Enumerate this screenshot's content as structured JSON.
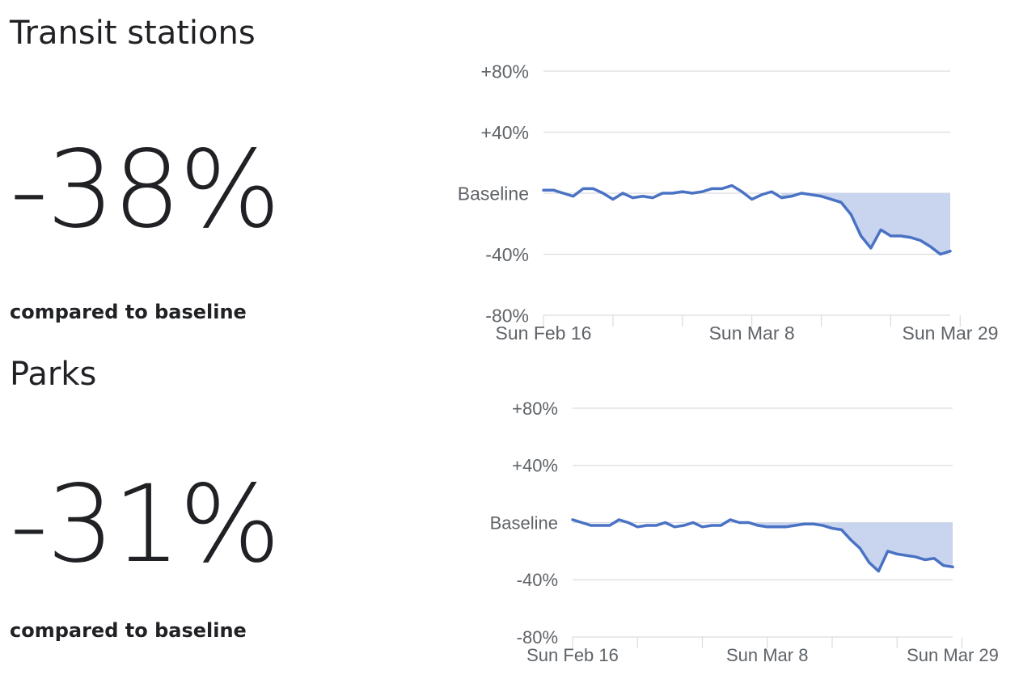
{
  "panels": [
    {
      "title": "Transit stations",
      "value": "-38%",
      "caption": "compared to baseline"
    },
    {
      "title": "Parks",
      "value": "-31%",
      "caption": "compared to baseline"
    }
  ],
  "colors": {
    "line": "#4a72c4",
    "fill": "#c9d4ee",
    "grid": "#dadce0",
    "text": "#202124",
    "tick_text": "#5f6368"
  },
  "chart_data": [
    {
      "type": "area",
      "x_start": "2020-02-16",
      "x_end": "2020-03-29",
      "xticks": [
        "Sun Feb 16",
        "Sun Mar 8",
        "Sun Mar 29"
      ],
      "yticks": [
        {
          "value": 80,
          "label": "+80%"
        },
        {
          "value": 40,
          "label": "+40%"
        },
        {
          "value": 0,
          "label": "Baseline"
        },
        {
          "value": -40,
          "label": "-40%"
        },
        {
          "value": -80,
          "label": "-80%"
        }
      ],
      "ylim": [
        -80,
        80
      ],
      "grid": true,
      "series": [
        {
          "values": [
            2,
            2,
            0,
            -2,
            3,
            3,
            0,
            -4,
            0,
            -3,
            -2,
            -3,
            0,
            0,
            1,
            0,
            1,
            3,
            3,
            5,
            1,
            -4,
            -1,
            1,
            -3,
            -2,
            0,
            -1,
            -2,
            -4,
            -6,
            -14,
            -28,
            -36,
            -24,
            -28,
            -28,
            -29,
            -31,
            -35,
            -40,
            -38
          ]
        }
      ]
    },
    {
      "type": "area",
      "x_start": "2020-02-16",
      "x_end": "2020-03-29",
      "xticks": [
        "Sun Feb 16",
        "Sun Mar 8",
        "Sun Mar 29"
      ],
      "yticks": [
        {
          "value": 80,
          "label": "+80%"
        },
        {
          "value": 40,
          "label": "+40%"
        },
        {
          "value": 0,
          "label": "Baseline"
        },
        {
          "value": -40,
          "label": "-40%"
        },
        {
          "value": -80,
          "label": "-80%"
        }
      ],
      "ylim": [
        -80,
        80
      ],
      "grid": true,
      "series": [
        {
          "values": [
            2,
            0,
            -2,
            -2,
            -2,
            2,
            0,
            -3,
            -2,
            -2,
            0,
            -3,
            -2,
            0,
            -3,
            -2,
            -2,
            2,
            0,
            0,
            -2,
            -3,
            -3,
            -3,
            -2,
            -1,
            -1,
            -2,
            -4,
            -5,
            -12,
            -18,
            -28,
            -34,
            -20,
            -22,
            -23,
            -24,
            -26,
            -25,
            -30,
            -31
          ]
        }
      ]
    }
  ]
}
